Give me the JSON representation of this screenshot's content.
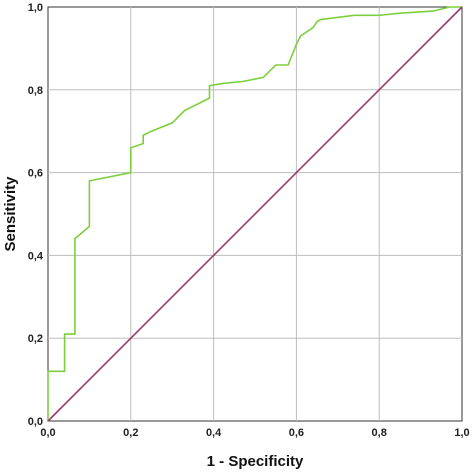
{
  "chart_data": {
    "type": "line",
    "xlabel": "1 - Specificity",
    "ylabel": "Sensitivity",
    "xlim": [
      0,
      1
    ],
    "ylim": [
      0,
      1
    ],
    "x_ticks": [
      "0,0",
      "0,2",
      "0,4",
      "0,6",
      "0,8",
      "1,0"
    ],
    "y_ticks": [
      "0,0",
      "0,2",
      "0,4",
      "0,6",
      "0,8",
      "1,0"
    ],
    "grid": true,
    "series": [
      {
        "color": "#7ccf3c",
        "x": [
          0.0,
          0.0,
          0.04,
          0.04,
          0.065,
          0.065,
          0.1,
          0.1,
          0.2,
          0.2,
          0.23,
          0.23,
          0.25,
          0.3,
          0.33,
          0.39,
          0.39,
          0.42,
          0.47,
          0.52,
          0.55,
          0.58,
          0.6,
          0.61,
          0.64,
          0.65,
          0.66,
          0.74,
          0.8,
          0.85,
          0.93,
          0.97,
          1.0
        ],
        "y": [
          0.0,
          0.12,
          0.12,
          0.21,
          0.21,
          0.44,
          0.47,
          0.58,
          0.6,
          0.66,
          0.67,
          0.69,
          0.7,
          0.72,
          0.75,
          0.78,
          0.81,
          0.815,
          0.82,
          0.83,
          0.86,
          0.86,
          0.91,
          0.93,
          0.95,
          0.965,
          0.97,
          0.98,
          0.98,
          0.985,
          0.99,
          1.0,
          1.0
        ]
      },
      {
        "color": "#9b3a6b",
        "x": [
          0.0,
          1.0
        ],
        "y": [
          0.0,
          1.0
        ]
      }
    ]
  }
}
